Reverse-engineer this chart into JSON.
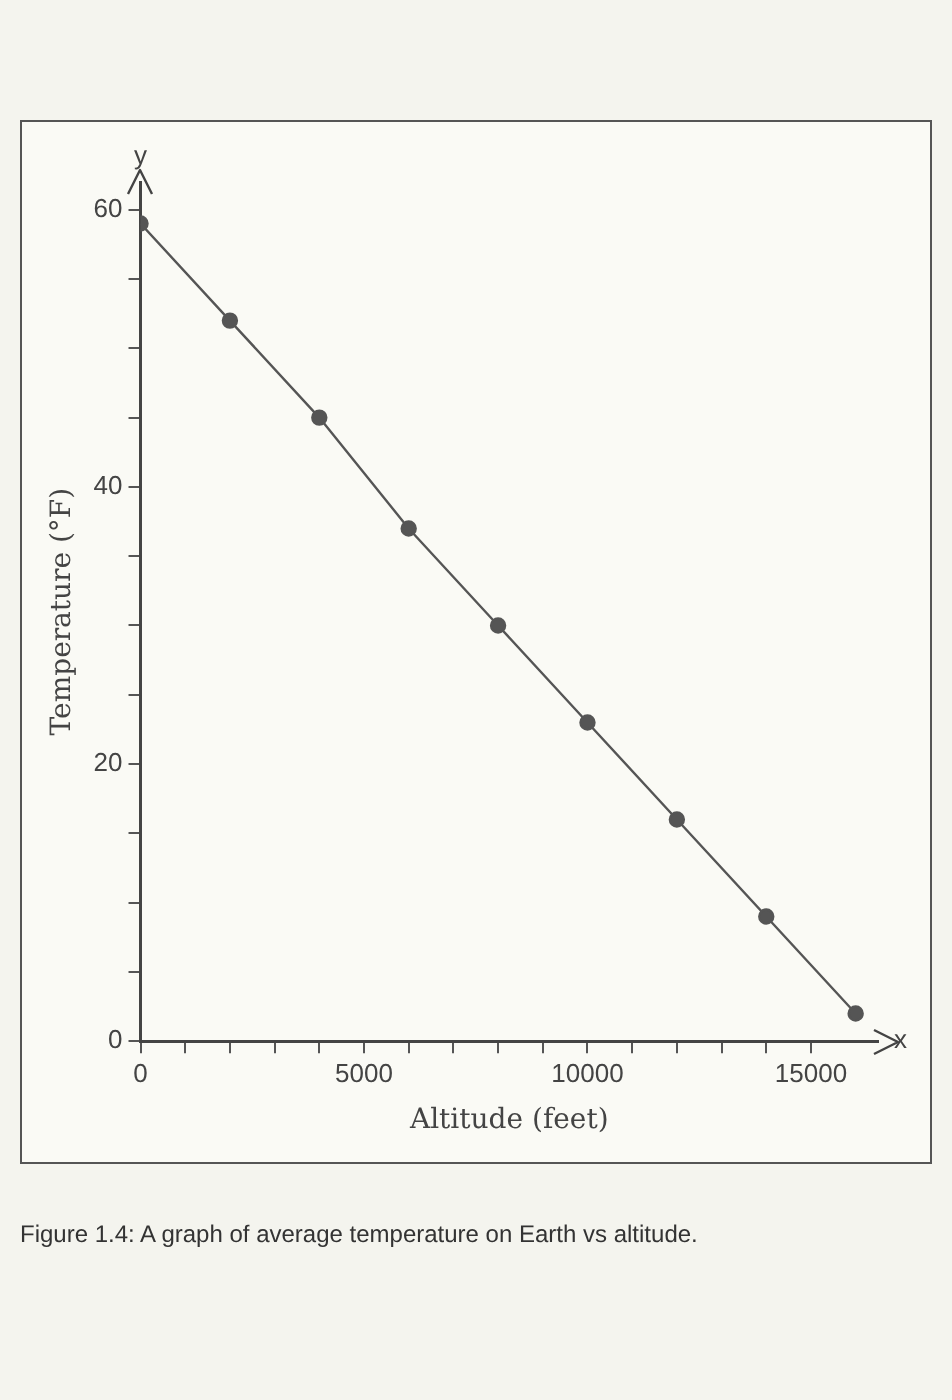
{
  "chart_data": {
    "type": "line",
    "xlabel": "Altitude (feet)",
    "ylabel": "Temperature (°F)",
    "x": [
      0,
      2000,
      4000,
      6000,
      8000,
      10000,
      12000,
      14000,
      16000
    ],
    "series": [
      {
        "color": "#555555",
        "values": [
          59,
          52,
          45,
          37,
          30,
          23,
          16,
          9,
          2
        ]
      }
    ],
    "xlim": [
      0,
      16500
    ],
    "xticks": [
      0,
      {
        "value": 1000,
        "label": null
      },
      {
        "value": 2000,
        "label": null
      },
      {
        "value": 3000,
        "label": null
      },
      {
        "value": 4000,
        "label": null
      },
      5000,
      {
        "value": 6000,
        "label": null
      },
      {
        "value": 7000,
        "label": null
      },
      {
        "value": 8000,
        "label": null
      },
      {
        "value": 9000,
        "label": null
      },
      10000,
      {
        "value": 11000,
        "label": null
      },
      {
        "value": 12000,
        "label": null
      },
      {
        "value": 13000,
        "label": null
      },
      {
        "value": 14000,
        "label": null
      },
      15000
    ],
    "ylim": [
      0,
      62
    ],
    "yticks": [
      0,
      {
        "value": 5,
        "label": null
      },
      {
        "value": 10,
        "label": null
      },
      {
        "value": 15,
        "label": null
      },
      20,
      {
        "value": 25,
        "label": null
      },
      {
        "value": 30,
        "label": null
      },
      {
        "value": 35,
        "label": null
      },
      40,
      {
        "value": 45,
        "label": null
      },
      {
        "value": 50,
        "label": null
      },
      {
        "value": 55,
        "label": null
      },
      60
    ],
    "grid": false,
    "legend": false,
    "marker": "circle",
    "line_style": "solid",
    "annotations": [
      "y",
      "x",
      "Figure 1.4: A graph of average temperature on Earth vs altitude."
    ]
  }
}
